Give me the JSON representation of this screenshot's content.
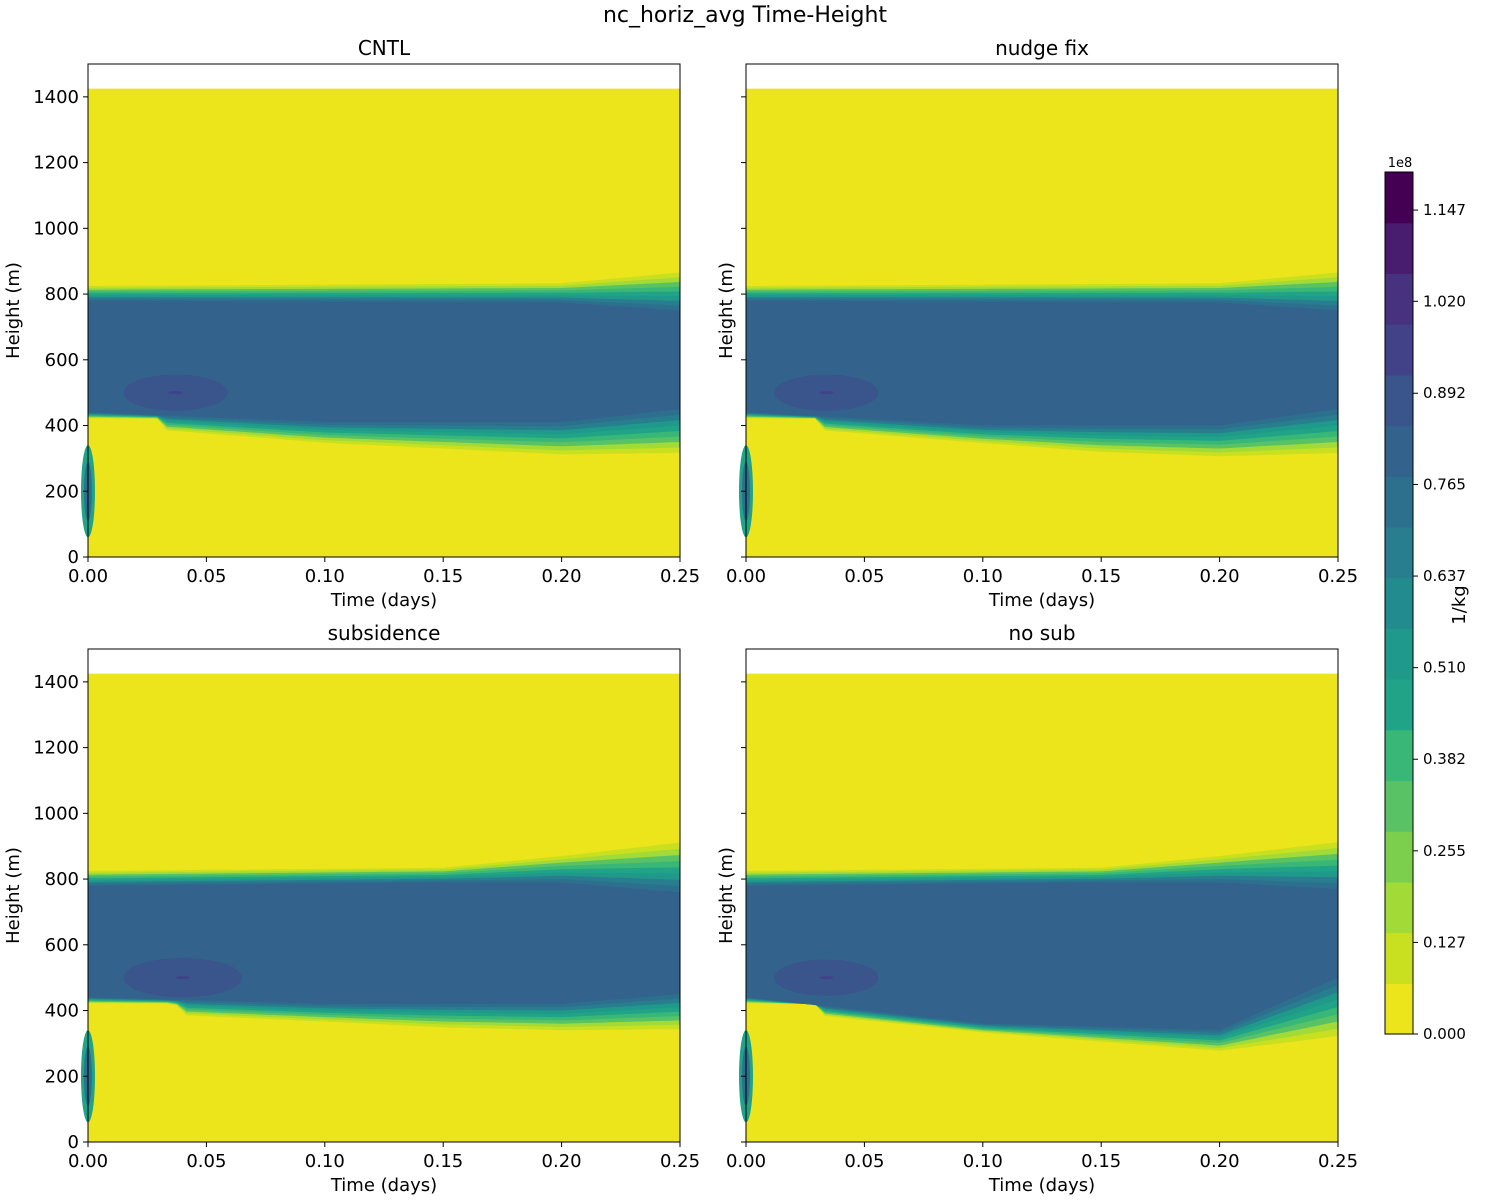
{
  "figure": {
    "title": "nc_horiz_avg Time-Height"
  },
  "colors": {
    "levels": [
      "#ece51b",
      "#c8e020",
      "#a2da37",
      "#7ccf4c",
      "#58c265",
      "#38b776",
      "#20a386",
      "#1f9a8a",
      "#228b8d",
      "#287d8e",
      "#2d708e",
      "#33638d",
      "#3a548c",
      "#414287",
      "#46327e",
      "#481c6e",
      "#440154"
    ],
    "background": "#ffffff",
    "axis": "#000000"
  },
  "chart_data": [
    {
      "type": "contour",
      "title": "CNTL",
      "xlabel": "Time (days)",
      "ylabel": "Height (m)",
      "xlim": [
        0.0,
        0.25
      ],
      "ylim": [
        0,
        1500
      ],
      "xticks": [
        "0.00",
        "0.05",
        "0.10",
        "0.15",
        "0.20",
        "0.25"
      ],
      "yticks": [
        "0",
        "200",
        "400",
        "600",
        "800",
        "1000",
        "1200",
        "1400"
      ],
      "data_top_m": 1425,
      "cloud_top": [
        [
          0.0,
          830
        ],
        [
          0.1,
          835
        ],
        [
          0.2,
          840
        ],
        [
          0.25,
          880
        ]
      ],
      "cloud_base": [
        [
          0.0,
          420
        ],
        [
          0.03,
          420
        ],
        [
          0.033,
          380
        ],
        [
          0.1,
          340
        ],
        [
          0.15,
          320
        ],
        [
          0.2,
          300
        ],
        [
          0.25,
          300
        ]
      ],
      "core_top": [
        [
          0.0,
          780
        ],
        [
          0.2,
          775
        ],
        [
          0.25,
          750
        ]
      ],
      "core_base": [
        [
          0.0,
          440
        ],
        [
          0.1,
          410
        ],
        [
          0.2,
          410
        ],
        [
          0.25,
          450
        ]
      ],
      "max_blob": {
        "time": 0.037,
        "height": 500,
        "dt": 0.022,
        "dh": 55
      }
    },
    {
      "type": "contour",
      "title": "nudge fix",
      "xlabel": "Time (days)",
      "ylabel": "Height (m)",
      "xlim": [
        0.0,
        0.25
      ],
      "ylim": [
        0,
        1500
      ],
      "xticks": [
        "0.00",
        "0.05",
        "0.10",
        "0.15",
        "0.20",
        "0.25"
      ],
      "yticks": [
        "0",
        "200",
        "400",
        "600",
        "800",
        "1000",
        "1200",
        "1400"
      ],
      "data_top_m": 1425,
      "cloud_top": [
        [
          0.0,
          830
        ],
        [
          0.1,
          835
        ],
        [
          0.2,
          840
        ],
        [
          0.25,
          880
        ]
      ],
      "cloud_base": [
        [
          0.0,
          420
        ],
        [
          0.03,
          420
        ],
        [
          0.033,
          380
        ],
        [
          0.1,
          340
        ],
        [
          0.15,
          310
        ],
        [
          0.2,
          295
        ],
        [
          0.25,
          300
        ]
      ],
      "core_top": [
        [
          0.0,
          780
        ],
        [
          0.2,
          775
        ],
        [
          0.25,
          750
        ]
      ],
      "core_base": [
        [
          0.0,
          440
        ],
        [
          0.1,
          400
        ],
        [
          0.2,
          400
        ],
        [
          0.25,
          450
        ]
      ],
      "max_blob": {
        "time": 0.034,
        "height": 500,
        "dt": 0.022,
        "dh": 55
      }
    },
    {
      "type": "contour",
      "title": "subsidence",
      "xlabel": "Time (days)",
      "ylabel": "Height (m)",
      "xlim": [
        0.0,
        0.25
      ],
      "ylim": [
        0,
        1500
      ],
      "xticks": [
        "0.00",
        "0.05",
        "0.10",
        "0.15",
        "0.20",
        "0.25"
      ],
      "yticks": [
        "0",
        "200",
        "400",
        "600",
        "800",
        "1000",
        "1200",
        "1400"
      ],
      "data_top_m": 1425,
      "cloud_top": [
        [
          0.0,
          830
        ],
        [
          0.15,
          840
        ],
        [
          0.2,
          880
        ],
        [
          0.25,
          930
        ]
      ],
      "cloud_base": [
        [
          0.0,
          420
        ],
        [
          0.037,
          420
        ],
        [
          0.04,
          380
        ],
        [
          0.1,
          360
        ],
        [
          0.15,
          340
        ],
        [
          0.2,
          330
        ],
        [
          0.25,
          330
        ]
      ],
      "core_top": [
        [
          0.0,
          780
        ],
        [
          0.15,
          790
        ],
        [
          0.2,
          790
        ],
        [
          0.25,
          760
        ]
      ],
      "core_base": [
        [
          0.0,
          440
        ],
        [
          0.1,
          420
        ],
        [
          0.2,
          420
        ],
        [
          0.25,
          450
        ]
      ],
      "max_blob": {
        "time": 0.04,
        "height": 500,
        "dt": 0.025,
        "dh": 60
      }
    },
    {
      "type": "contour",
      "title": "no sub",
      "xlabel": "Time (days)",
      "ylabel": "Height (m)",
      "xlim": [
        0.0,
        0.25
      ],
      "ylim": [
        0,
        1500
      ],
      "xticks": [
        "0.00",
        "0.05",
        "0.10",
        "0.15",
        "0.20",
        "0.25"
      ],
      "yticks": [
        "0",
        "200",
        "400",
        "600",
        "800",
        "1000",
        "1200",
        "1400"
      ],
      "data_top_m": 1425,
      "cloud_top": [
        [
          0.0,
          830
        ],
        [
          0.15,
          840
        ],
        [
          0.2,
          880
        ],
        [
          0.25,
          930
        ]
      ],
      "cloud_base": [
        [
          0.0,
          420
        ],
        [
          0.03,
          420
        ],
        [
          0.033,
          380
        ],
        [
          0.1,
          330
        ],
        [
          0.15,
          300
        ],
        [
          0.2,
          270
        ],
        [
          0.25,
          300
        ]
      ],
      "core_top": [
        [
          0.0,
          780
        ],
        [
          0.15,
          790
        ],
        [
          0.2,
          790
        ],
        [
          0.25,
          770
        ]
      ],
      "core_base": [
        [
          0.0,
          440
        ],
        [
          0.1,
          360
        ],
        [
          0.2,
          340
        ],
        [
          0.25,
          500
        ]
      ],
      "max_blob": {
        "time": 0.034,
        "height": 500,
        "dt": 0.022,
        "dh": 55
      }
    }
  ],
  "colorbar": {
    "label": "1/kg",
    "multiplier": "1e8",
    "range": [
      0,
      1.2
    ],
    "ticks": [
      {
        "value": 0.0,
        "label": "0.000"
      },
      {
        "value": 0.1275,
        "label": "0.127"
      },
      {
        "value": 0.255,
        "label": "0.255"
      },
      {
        "value": 0.3825,
        "label": "0.382"
      },
      {
        "value": 0.51,
        "label": "0.510"
      },
      {
        "value": 0.6375,
        "label": "0.637"
      },
      {
        "value": 0.765,
        "label": "0.765"
      },
      {
        "value": 0.892,
        "label": "0.892"
      },
      {
        "value": 1.02,
        "label": "1.020"
      },
      {
        "value": 1.147,
        "label": "1.147"
      }
    ]
  }
}
